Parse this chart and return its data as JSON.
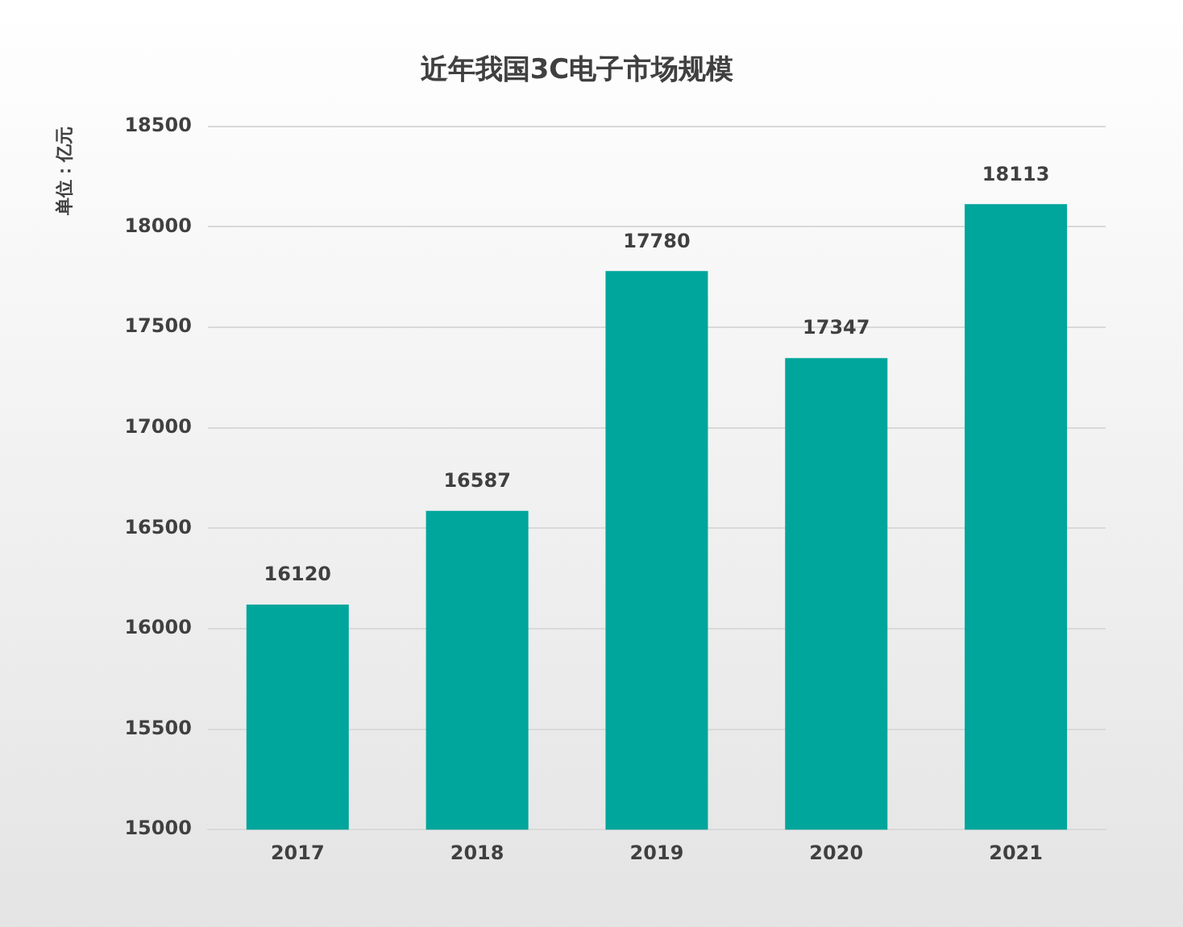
{
  "chart_data": {
    "type": "bar",
    "title": "近年我国3C电子市场规模",
    "ylabel": "单位：亿元",
    "categories": [
      "2017",
      "2018",
      "2019",
      "2020",
      "2021"
    ],
    "values": [
      16120,
      16587,
      17780,
      17347,
      18113
    ],
    "color": "#00a59b",
    "ylim": [
      15000,
      18500
    ],
    "yticks": [
      15000,
      15500,
      16000,
      16500,
      17000,
      17500,
      18000,
      18500
    ],
    "grid": "y",
    "data_labels": true,
    "legend": false
  }
}
